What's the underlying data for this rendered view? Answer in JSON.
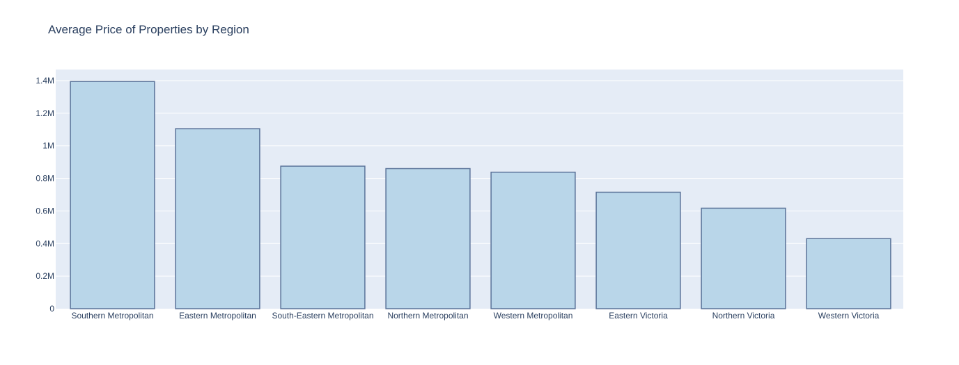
{
  "chart_data": {
    "type": "bar",
    "title": "Average Price of Properties by Region",
    "xlabel": "",
    "ylabel": "",
    "categories": [
      "Southern Metropolitan",
      "Eastern Metropolitan",
      "South-Eastern Metropolitan",
      "Northern Metropolitan",
      "Western Metropolitan",
      "Eastern Victoria",
      "Northern Victoria",
      "Western Victoria"
    ],
    "values": [
      1395000,
      1105000,
      875000,
      860000,
      838000,
      715000,
      617000,
      430000
    ],
    "ylim": [
      0,
      1400000
    ],
    "yticks": [
      {
        "value": 0,
        "label": "0"
      },
      {
        "value": 200000,
        "label": "0.2M"
      },
      {
        "value": 400000,
        "label": "0.4M"
      },
      {
        "value": 600000,
        "label": "0.6M"
      },
      {
        "value": 800000,
        "label": "0.8M"
      },
      {
        "value": 1000000,
        "label": "1M"
      },
      {
        "value": 1200000,
        "label": "1.2M"
      },
      {
        "value": 1400000,
        "label": "1.4M"
      }
    ],
    "grid": true,
    "colors": {
      "plot_background": "#e5ecf6",
      "bar_fill": "#b9d6e9",
      "bar_stroke": "#5b7399",
      "grid": "#ffffff",
      "text": "#2a3f5f"
    }
  }
}
